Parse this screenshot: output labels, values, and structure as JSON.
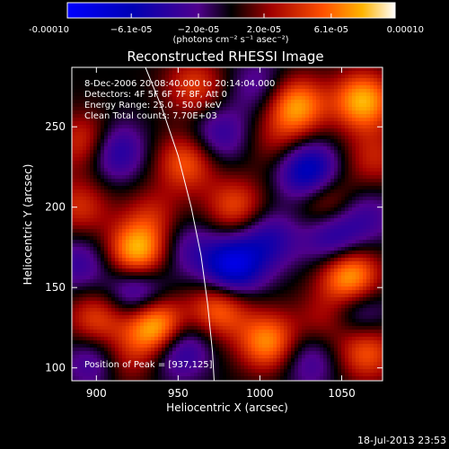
{
  "chart_data": {
    "type": "heatmap",
    "title": "Reconstructed RHESSI Image",
    "xlabel": "Heliocentric X (arcsec)",
    "ylabel": "Heliocentric Y (arcsec)",
    "xlim": [
      885,
      1075
    ],
    "ylim": [
      92,
      287
    ],
    "x_ticks": [
      900,
      950,
      1000,
      1050
    ],
    "y_ticks": [
      100,
      150,
      200,
      250
    ],
    "colorbar": {
      "range": [
        -0.0001,
        0.0001
      ],
      "tick_values": [
        -0.0001,
        -6.1e-05,
        -2e-05,
        2e-05,
        6.1e-05,
        0.0001
      ],
      "tick_labels": [
        "-0.00010",
        "−6.1e-05",
        "−2.0e-05",
        "2.0e-05",
        "6.1e-05",
        "0.00010"
      ],
      "unit_label": "(photons cm⁻² s⁻¹ asec⁻²)"
    },
    "annotations": [
      "8-Dec-2006 20:08:40.000 to 20:14:04.000",
      "Detectors: 4F 5F 6F 7F 8F, Att 0",
      "Energy Range: 25.0 - 50.0 keV",
      "Clean    Total counts: 7.70E+03",
      "Position of Peak = [937,125]"
    ],
    "timestamp": "18-Jul-2013 23:53",
    "peaks": [
      {
        "x": 937,
        "y": 125,
        "v": 1.0
      },
      {
        "x": 925,
        "y": 172,
        "v": 0.85
      },
      {
        "x": 955,
        "y": 228,
        "v": 0.55
      },
      {
        "x": 1022,
        "y": 263,
        "v": 0.75
      },
      {
        "x": 1063,
        "y": 266,
        "v": 0.8
      },
      {
        "x": 1055,
        "y": 157,
        "v": 0.85
      },
      {
        "x": 1005,
        "y": 116,
        "v": 0.7
      },
      {
        "x": 975,
        "y": 137,
        "v": 0.6
      },
      {
        "x": 895,
        "y": 240,
        "v": 0.55
      },
      {
        "x": 985,
        "y": 200,
        "v": 0.5
      },
      {
        "x": 1040,
        "y": 205,
        "v": 0.45
      },
      {
        "x": 900,
        "y": 130,
        "v": 0.5
      },
      {
        "x": 1065,
        "y": 110,
        "v": 0.55
      },
      {
        "x": 960,
        "y": 275,
        "v": 0.45
      },
      {
        "x": 890,
        "y": 200,
        "v": 0.4
      },
      {
        "x": 1070,
        "y": 230,
        "v": 0.35
      },
      {
        "x": 1040,
        "y": 130,
        "v": 0.3
      },
      {
        "x": 935,
        "y": 195,
        "v": 0.3
      },
      {
        "x": 915,
        "y": 105,
        "v": 0.35
      },
      {
        "x": 1010,
        "y": 240,
        "v": 0.25
      }
    ],
    "troughs": [
      {
        "x": 983,
        "y": 163,
        "v": -0.85
      },
      {
        "x": 1030,
        "y": 222,
        "v": -0.8
      },
      {
        "x": 910,
        "y": 235,
        "v": -0.6
      },
      {
        "x": 925,
        "y": 148,
        "v": -0.55
      },
      {
        "x": 950,
        "y": 113,
        "v": -0.6
      },
      {
        "x": 1045,
        "y": 180,
        "v": -0.5
      },
      {
        "x": 975,
        "y": 245,
        "v": -0.4
      },
      {
        "x": 1005,
        "y": 180,
        "v": -0.45
      },
      {
        "x": 900,
        "y": 105,
        "v": -0.45
      },
      {
        "x": 1060,
        "y": 135,
        "v": -0.4
      },
      {
        "x": 1030,
        "y": 105,
        "v": -0.35
      },
      {
        "x": 955,
        "y": 175,
        "v": -0.3
      },
      {
        "x": 890,
        "y": 165,
        "v": -0.35
      },
      {
        "x": 1000,
        "y": 275,
        "v": -0.3
      },
      {
        "x": 1065,
        "y": 195,
        "v": -0.3
      }
    ],
    "limb": [
      [
        930,
        287
      ],
      [
        940,
        262
      ],
      [
        950,
        232
      ],
      [
        958,
        200
      ],
      [
        964,
        170
      ],
      [
        968,
        140
      ],
      [
        971,
        110
      ],
      [
        972,
        92
      ]
    ]
  }
}
